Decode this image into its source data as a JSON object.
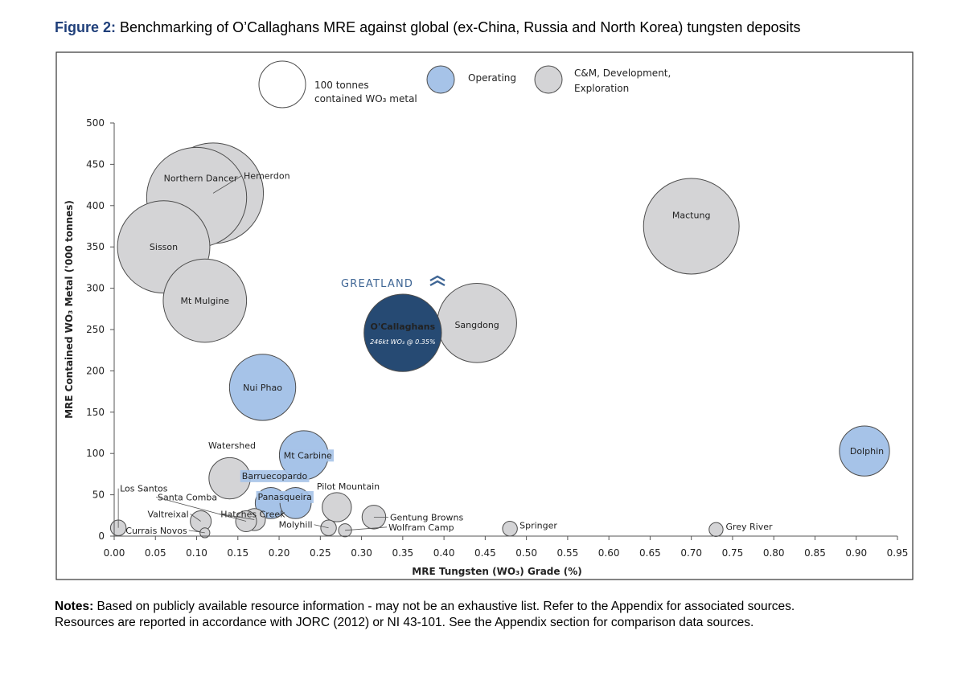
{
  "caption": {
    "label": "Figure 2:",
    "text": " Benchmarking of O’Callaghans MRE against global (ex-China, Russia and North Korea) tungsten deposits"
  },
  "notes": {
    "label": "Notes:",
    "line1": " Based on publicly available resource information - may not be an exhaustive list. Refer to the Appendix for associated sources.",
    "line2": "Resources are reported in accordance with JORC (2012) or NI 43-101. See the Appendix section for comparison data sources."
  },
  "logo_text": "GREATLAND",
  "colors": {
    "operating": "#a6c3e8",
    "cm_development": "#d4d4d6",
    "highlight": "#264a73",
    "outline": "#4d4d4d",
    "caption_blue": "#1f3f7a"
  },
  "chart_data": {
    "type": "bubble",
    "xlabel": "MRE Tungsten (WO₃) Grade (%)",
    "ylabel": "MRE Contained WO₃ Metal ('000 tonnes)",
    "xlim": [
      0,
      0.95
    ],
    "ylim": [
      0,
      500
    ],
    "xticks": [
      "0.00",
      "0.05",
      "0.10",
      "0.15",
      "0.20",
      "0.25",
      "0.30",
      "0.35",
      "0.40",
      "0.45",
      "0.50",
      "0.55",
      "0.60",
      "0.65",
      "0.70",
      "0.75",
      "0.80",
      "0.85",
      "0.90",
      "0.95"
    ],
    "yticks": [
      "0",
      "50",
      "100",
      "150",
      "200",
      "250",
      "300",
      "350",
      "400",
      "450",
      "500"
    ],
    "grid": false,
    "legend_position": "top",
    "legend": {
      "size_reference": {
        "value": 100,
        "label_line1": "100 tonnes",
        "label_line2": "contained WO₃ metal"
      },
      "operating": "Operating",
      "cm_line1": "C&M, Development,",
      "cm_line2": "Exploration"
    },
    "points": [
      {
        "name": "Hemerdon",
        "x": 0.12,
        "y": 415,
        "size": 415,
        "status": "cm"
      },
      {
        "name": "Northern Dancer",
        "x": 0.1,
        "y": 410,
        "size": 410,
        "status": "cm"
      },
      {
        "name": "Sisson",
        "x": 0.06,
        "y": 350,
        "size": 350,
        "status": "cm"
      },
      {
        "name": "Mt Mulgine",
        "x": 0.11,
        "y": 285,
        "size": 285,
        "status": "cm"
      },
      {
        "name": "Mactung",
        "x": 0.7,
        "y": 375,
        "size": 375,
        "status": "cm"
      },
      {
        "name": "Sangdong",
        "x": 0.44,
        "y": 258,
        "size": 258,
        "status": "cm"
      },
      {
        "name": "O'Callaghans",
        "sublabel": "246kt WO₃ @ 0.35%",
        "x": 0.35,
        "y": 246,
        "size": 246,
        "status": "highlight"
      },
      {
        "name": "Nui Phao",
        "x": 0.18,
        "y": 180,
        "size": 180,
        "status": "operating"
      },
      {
        "name": "Mt Carbine",
        "x": 0.23,
        "y": 98,
        "size": 98,
        "status": "operating"
      },
      {
        "name": "Dolphin",
        "x": 0.91,
        "y": 103,
        "size": 103,
        "status": "operating"
      },
      {
        "name": "Watershed",
        "x": 0.14,
        "y": 70,
        "size": 70,
        "status": "cm"
      },
      {
        "name": "Barruecopardo",
        "x": 0.19,
        "y": 40,
        "size": 40,
        "status": "operating"
      },
      {
        "name": "Panasqueira",
        "x": 0.22,
        "y": 40,
        "size": 40,
        "status": "operating"
      },
      {
        "name": "Pilot Mountain",
        "x": 0.27,
        "y": 35,
        "size": 35,
        "status": "cm"
      },
      {
        "name": "Gentung Browns",
        "x": 0.315,
        "y": 23,
        "size": 23,
        "status": "cm"
      },
      {
        "name": "Los Santos",
        "x": 0.005,
        "y": 10,
        "size": 10,
        "status": "cm"
      },
      {
        "name": "Santa Comba",
        "x": 0.16,
        "y": 18,
        "size": 18,
        "status": "cm"
      },
      {
        "name": "Valtreixal",
        "x": 0.105,
        "y": 18,
        "size": 18,
        "status": "cm"
      },
      {
        "name": "Hatches Creek",
        "x": 0.17,
        "y": 20,
        "size": 20,
        "status": "cm"
      },
      {
        "name": "Currais Novos",
        "x": 0.11,
        "y": 4,
        "size": 4,
        "status": "cm"
      },
      {
        "name": "Molyhill",
        "x": 0.26,
        "y": 10,
        "size": 10,
        "status": "cm"
      },
      {
        "name": "Wolfram Camp",
        "x": 0.28,
        "y": 7,
        "size": 7,
        "status": "cm"
      },
      {
        "name": "Springer",
        "x": 0.48,
        "y": 9,
        "size": 9,
        "status": "cm"
      },
      {
        "name": "Grey River",
        "x": 0.73,
        "y": 8,
        "size": 8,
        "status": "cm"
      }
    ]
  }
}
